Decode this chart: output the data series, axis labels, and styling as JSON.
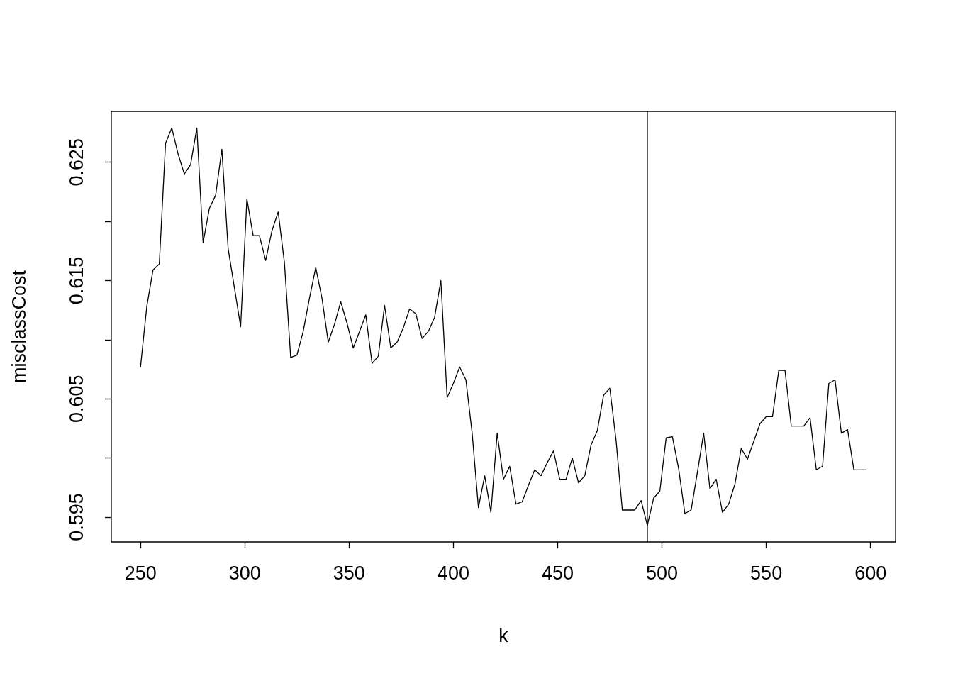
{
  "chart_data": {
    "type": "line",
    "xlabel": "k",
    "ylabel": "misclassCost",
    "x": [
      250,
      253,
      256,
      259,
      262,
      265,
      268,
      271,
      274,
      277,
      280,
      283,
      286,
      289,
      292,
      295,
      298,
      301,
      304,
      307,
      310,
      313,
      316,
      319,
      322,
      325,
      328,
      331,
      334,
      337,
      340,
      343,
      346,
      349,
      352,
      355,
      358,
      361,
      364,
      367,
      370,
      373,
      376,
      379,
      382,
      385,
      388,
      391,
      394,
      397,
      400,
      403,
      406,
      409,
      412,
      415,
      418,
      421,
      424,
      427,
      430,
      433,
      436,
      439,
      442,
      445,
      448,
      451,
      454,
      457,
      460,
      463,
      466,
      469,
      472,
      475,
      478,
      481,
      484,
      487,
      490,
      493,
      496,
      499,
      502,
      505,
      508,
      511,
      514,
      517,
      520,
      523,
      526,
      529,
      532,
      535,
      538,
      541,
      544,
      547,
      550,
      553,
      556,
      559,
      562,
      565,
      568,
      571,
      574,
      577,
      580,
      583,
      586,
      589,
      592,
      595,
      598
    ],
    "series": [
      {
        "color": "#000000",
        "values": [
          0.6077,
          0.6128,
          0.6159,
          0.6164,
          0.6266,
          0.6279,
          0.6257,
          0.624,
          0.6248,
          0.6279,
          0.6182,
          0.6211,
          0.6222,
          0.6261,
          0.6177,
          0.6144,
          0.6111,
          0.6219,
          0.6188,
          0.6188,
          0.6167,
          0.6192,
          0.6208,
          0.6165,
          0.6085,
          0.6087,
          0.6107,
          0.6135,
          0.6161,
          0.6135,
          0.6098,
          0.6113,
          0.6132,
          0.6114,
          0.6093,
          0.6107,
          0.6121,
          0.608,
          0.6086,
          0.6129,
          0.6093,
          0.6098,
          0.611,
          0.6126,
          0.6122,
          0.6101,
          0.6107,
          0.6119,
          0.615,
          0.6051,
          0.6063,
          0.6077,
          0.6066,
          0.6021,
          0.5958,
          0.5985,
          0.5954,
          0.6021,
          0.5982,
          0.5993,
          0.5961,
          0.5963,
          0.5977,
          0.599,
          0.5985,
          0.5996,
          0.6006,
          0.5982,
          0.5982,
          0.6,
          0.5979,
          0.5985,
          0.6011,
          0.6023,
          0.6053,
          0.6059,
          0.6015,
          0.5956,
          0.5956,
          0.5956,
          0.5964,
          0.5943,
          0.5966,
          0.5972,
          0.6017,
          0.6018,
          0.5991,
          0.5953,
          0.5956,
          0.5988,
          0.6021,
          0.5974,
          0.5982,
          0.5954,
          0.5961,
          0.5978,
          0.6008,
          0.5999,
          0.6014,
          0.6029,
          0.6035,
          0.6035,
          0.6074,
          0.6074,
          0.6027,
          0.6027,
          0.6027,
          0.6034,
          0.599,
          0.5993,
          0.6063,
          0.6066,
          0.6021,
          0.6024,
          0.599,
          0.599,
          0.599
        ]
      }
    ],
    "xlim": [
      236,
      612
    ],
    "xticks": [
      250,
      300,
      350,
      400,
      450,
      500,
      550,
      600
    ],
    "ylim": [
      0.5929,
      0.6293
    ],
    "yticks": [
      0.595,
      {
        "value": 0.6,
        "label": null
      },
      0.605,
      {
        "value": 0.61,
        "label": null
      },
      0.615,
      {
        "value": 0.62,
        "label": null
      },
      0.625
    ],
    "ref_lines": [
      {
        "axis": "x",
        "value": 493,
        "color": "#000000"
      }
    ],
    "grid": false,
    "marker": "none",
    "line_style": "solid"
  }
}
